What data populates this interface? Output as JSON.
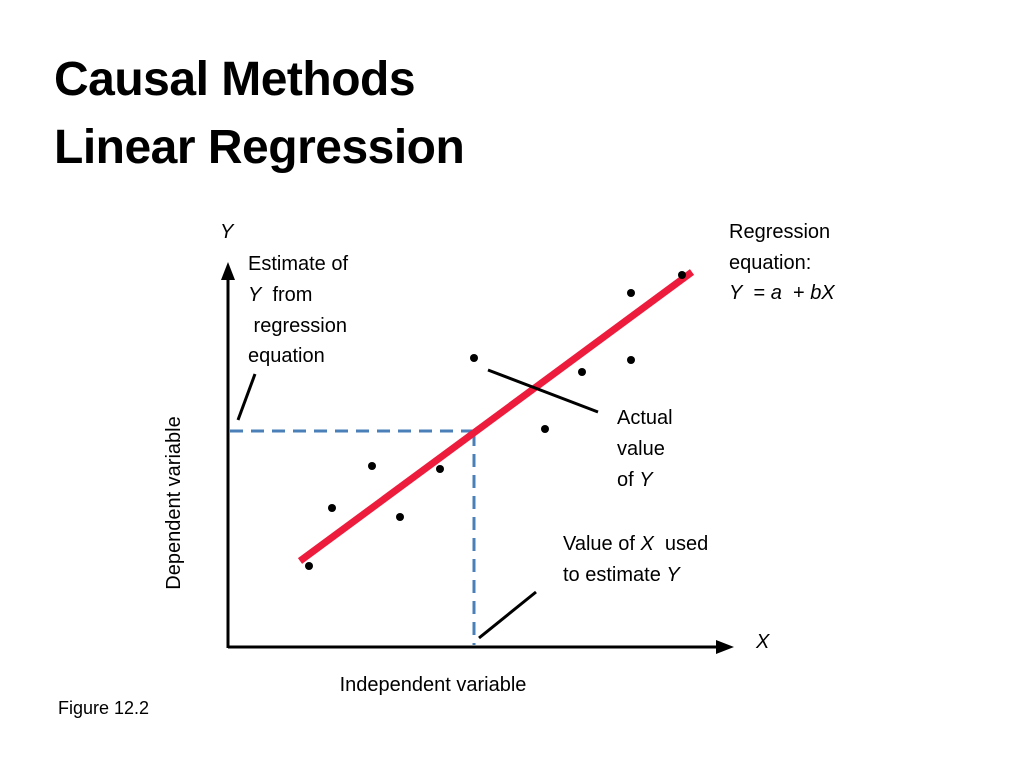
{
  "slide": {
    "title_line1": "Causal Methods",
    "title_line2": "Linear Regression",
    "figure_caption": "Figure 12.2"
  },
  "diagram": {
    "y_axis_symbol": "Y",
    "x_axis_symbol": "X",
    "y_axis_label": "Dependent variable",
    "x_axis_label": "Independent variable",
    "colors": {
      "regression_line": "#ee1c3c",
      "dashed_guides": "#4a7fb8",
      "axes": "#000000"
    },
    "callouts": {
      "estimate": {
        "line1": "Estimate of",
        "line2_sym": "Y",
        "line2_rest": "  from",
        "line3": " regression",
        "line4": "equation"
      },
      "regression": {
        "line1": "Regression",
        "line2": "equation:",
        "eq_y": "Y",
        "eq_eq": "  = ",
        "eq_a": "a",
        "eq_plus": "  + ",
        "eq_bx": "bX"
      },
      "actual": {
        "line1": "Actual",
        "line2": "value",
        "line3_pre": "of ",
        "line3_sym": "Y"
      },
      "value_x": {
        "line1_pre": "Value of ",
        "line1_sym": "X",
        "line1_post": "  used",
        "line2_pre": "to estimate ",
        "line2_sym": "Y"
      }
    }
  }
}
